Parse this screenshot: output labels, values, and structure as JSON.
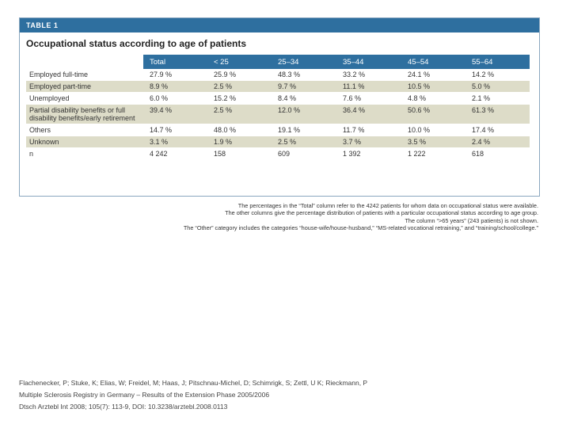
{
  "table": {
    "label": "TABLE 1",
    "title": "Occupational status according to age of patients",
    "columns": [
      "Total",
      "< 25",
      "25–34",
      "35–44",
      "45–54",
      "55–64"
    ],
    "rows": [
      {
        "label": "Employed full-time",
        "values": [
          "27.9 %",
          "25.9 %",
          "48.3 %",
          "33.2 %",
          "24.1 %",
          "14.2 %"
        ]
      },
      {
        "label": "Employed part-time",
        "values": [
          "8.9 %",
          "2.5 %",
          "9.7 %",
          "11.1 %",
          "10.5 %",
          "5.0 %"
        ]
      },
      {
        "label": "Unemployed",
        "values": [
          "6.0 %",
          "15.2 %",
          "8.4 %",
          "7.6 %",
          "4.8 %",
          "2.1 %"
        ]
      },
      {
        "label": "Partial disability benefits or full disability benefits/early retirement",
        "values": [
          "39.4 %",
          "2.5 %",
          "12.0 %",
          "36.4 %",
          "50.6 %",
          "61.3 %"
        ]
      },
      {
        "label": "Others",
        "values": [
          "14.7 %",
          "48.0 %",
          "19.1 %",
          "11.7 %",
          "10.0 %",
          "17.4 %"
        ]
      },
      {
        "label": "Unknown",
        "values": [
          "3.1 %",
          "1.9 %",
          "2.5 %",
          "3.7 %",
          "3.5 %",
          "2.4 %"
        ]
      },
      {
        "label": "n",
        "values": [
          "4 242",
          "158",
          "609",
          "1 392",
          "1 222",
          "618"
        ]
      }
    ]
  },
  "notes": [
    "The percentages in the “Total” column refer to the 4242 patients for whom data on occupational status were available.",
    "The other columns give the percentage distribution of patients with a particular occupational status according to age group.",
    "The column “>65 years” (243 patients) is not shown.",
    "The “Other” category includes the categories “house-wife/house-husband,” “MS-related vocational retraining,” and “training/school/college.”"
  ],
  "citation": [
    "Flachenecker, P; Stuke, K; Elias, W; Freidel, M; Haas, J; Pitschnau-Michel, D; Schimrigk, S; Zettl, U K; Rieckmann, P",
    "Multiple Sclerosis Registry in Germany – Results of the Extension Phase 2005/2006",
    "Dtsch Arztebl Int 2008; 105(7): 113-9, DOI: 10.3238/arztebl.2008.0113"
  ]
}
